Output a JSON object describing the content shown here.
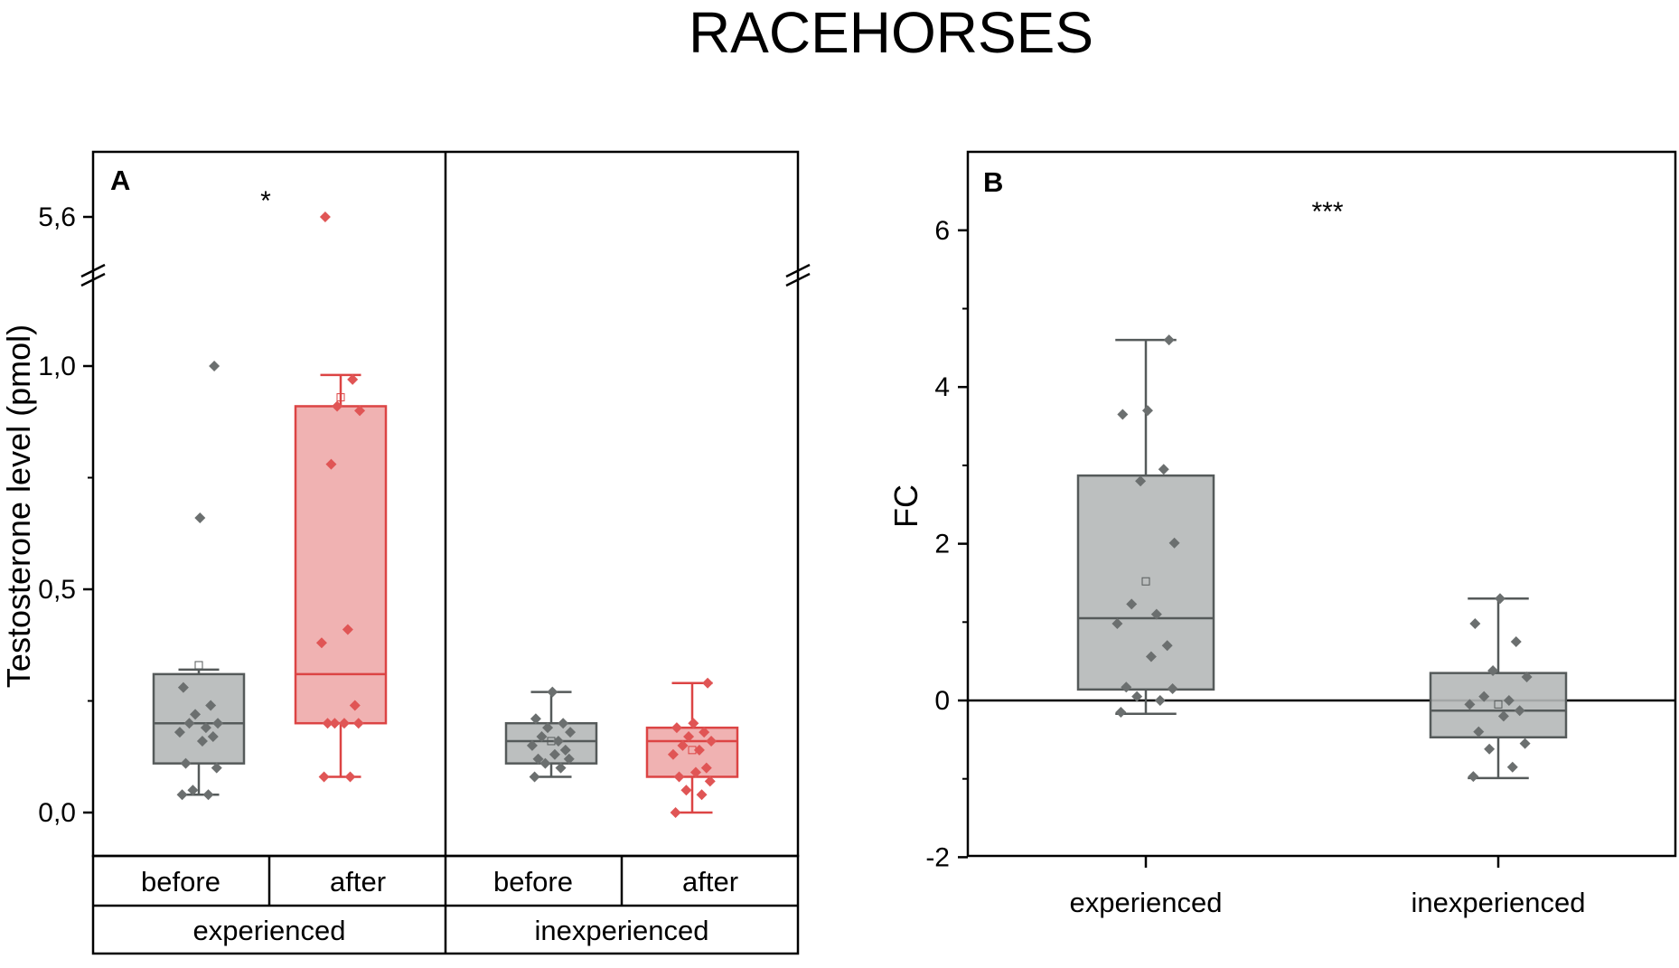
{
  "title": "RACEHORSES",
  "colors": {
    "gray_box_fill": "#b5b8b8",
    "gray_box_stroke": "#555a5a",
    "gray_point": "#6b6f6f",
    "red_box_fill": "#eeaaaa",
    "red_box_stroke": "#dc4444",
    "red_point": "#e05555"
  },
  "chart_data": [
    {
      "panel": "A",
      "type": "box",
      "ylabel": "Testosterone level (pmol)",
      "y_axis_break": {
        "from": 1.1,
        "to": 5.5
      },
      "ylim_lower": [
        -0.1,
        1.1
      ],
      "ylim_upper": [
        5.5,
        5.8
      ],
      "yticks": [
        {
          "value": 0.0,
          "label": "0,0"
        },
        {
          "value": 0.5,
          "label": "0,5"
        },
        {
          "value": 1.0,
          "label": "1,0"
        },
        {
          "value": 5.6,
          "label": "5,6"
        }
      ],
      "groups": [
        {
          "id": "experienced",
          "label": "experienced"
        },
        {
          "id": "inexperienced",
          "label": "inexperienced"
        }
      ],
      "conditions": [
        "before",
        "after"
      ],
      "significance": [
        {
          "label": "*",
          "group": "experienced"
        }
      ],
      "boxes": [
        {
          "group": "experienced",
          "condition": "before",
          "color": "gray",
          "whisker_low": 0.04,
          "q1": 0.11,
          "median": 0.2,
          "q3": 0.31,
          "whisker_high": 0.32,
          "mean": 0.33,
          "points": [
            0.04,
            0.04,
            0.05,
            0.1,
            0.11,
            0.16,
            0.17,
            0.18,
            0.19,
            0.2,
            0.2,
            0.22,
            0.24,
            0.28,
            0.66,
            1.0
          ]
        },
        {
          "group": "experienced",
          "condition": "after",
          "color": "red",
          "whisker_low": 0.08,
          "q1": 0.2,
          "median": 0.31,
          "q3": 0.91,
          "whisker_high": 0.98,
          "mean": 0.93,
          "points": [
            0.08,
            0.08,
            0.2,
            0.2,
            0.2,
            0.2,
            0.24,
            0.38,
            0.41,
            0.78,
            0.9,
            0.91,
            0.97,
            5.6
          ]
        },
        {
          "group": "inexperienced",
          "condition": "before",
          "color": "gray",
          "whisker_low": 0.08,
          "q1": 0.11,
          "median": 0.16,
          "q3": 0.2,
          "whisker_high": 0.27,
          "mean": 0.16,
          "points": [
            0.08,
            0.1,
            0.11,
            0.12,
            0.12,
            0.13,
            0.14,
            0.15,
            0.16,
            0.17,
            0.18,
            0.19,
            0.2,
            0.21,
            0.27
          ]
        },
        {
          "group": "inexperienced",
          "condition": "after",
          "color": "red",
          "whisker_low": 0.0,
          "q1": 0.08,
          "median": 0.16,
          "q3": 0.19,
          "whisker_high": 0.29,
          "mean": 0.14,
          "points": [
            0.0,
            0.04,
            0.05,
            0.07,
            0.08,
            0.09,
            0.1,
            0.13,
            0.14,
            0.15,
            0.16,
            0.17,
            0.18,
            0.19,
            0.2,
            0.29
          ]
        }
      ]
    },
    {
      "panel": "B",
      "type": "box",
      "ylabel": "FC",
      "ylim": [
        -2,
        7
      ],
      "yticks": [
        {
          "value": -2,
          "label": "-2"
        },
        {
          "value": 0,
          "label": "0"
        },
        {
          "value": 2,
          "label": "2"
        },
        {
          "value": 4,
          "label": "4"
        },
        {
          "value": 6,
          "label": "6"
        }
      ],
      "reference_line": 0,
      "categories": [
        "experienced",
        "inexperienced"
      ],
      "significance": [
        {
          "label": "***"
        }
      ],
      "boxes": [
        {
          "category": "experienced",
          "color": "gray",
          "whisker_low": -0.17,
          "q1": 0.14,
          "median": 1.05,
          "q3": 2.87,
          "whisker_high": 4.6,
          "mean": 1.52,
          "points": [
            -0.15,
            0.0,
            0.05,
            0.15,
            0.17,
            0.56,
            0.7,
            0.98,
            1.1,
            1.23,
            2.01,
            2.8,
            2.95,
            3.65,
            3.7,
            4.6
          ]
        },
        {
          "category": "inexperienced",
          "color": "gray",
          "whisker_low": -0.99,
          "q1": -0.47,
          "median": -0.13,
          "q3": 0.35,
          "whisker_high": 1.3,
          "mean": -0.05,
          "points": [
            -0.97,
            -0.85,
            -0.62,
            -0.55,
            -0.4,
            -0.2,
            -0.13,
            -0.05,
            0.0,
            0.05,
            0.3,
            0.38,
            0.75,
            0.98,
            1.3
          ]
        }
      ]
    }
  ]
}
